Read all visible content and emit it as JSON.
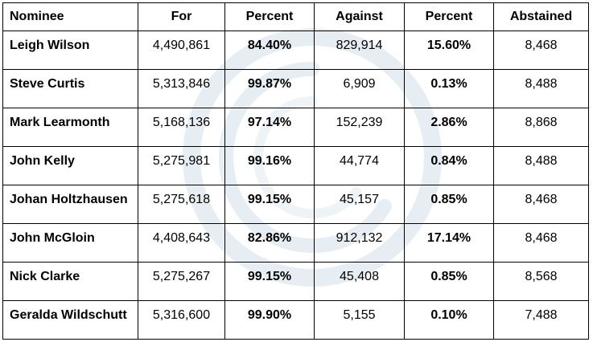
{
  "table": {
    "columns": [
      "Nominee",
      "For",
      "Percent",
      "Against",
      "Percent",
      "Abstained"
    ],
    "rows": [
      {
        "nominee": "Leigh Wilson",
        "for": "4,490,861",
        "for_percent": "84.40%",
        "against": "829,914",
        "against_percent": "15.60%",
        "abstained": "8,468"
      },
      {
        "nominee": "Steve Curtis",
        "for": "5,313,846",
        "for_percent": "99.87%",
        "against": "6,909",
        "against_percent": "0.13%",
        "abstained": "8,488"
      },
      {
        "nominee": "Mark Learmonth",
        "for": "5,168,136",
        "for_percent": "97.14%",
        "against": "152,239",
        "against_percent": "2.86%",
        "abstained": "8,868"
      },
      {
        "nominee": "John Kelly",
        "for": "5,275,981",
        "for_percent": "99.16%",
        "against": "44,774",
        "against_percent": "0.84%",
        "abstained": "8,488"
      },
      {
        "nominee": "Johan Holtzhausen",
        "for": "5,275,618",
        "for_percent": "99.15%",
        "against": "45,157",
        "against_percent": "0.85%",
        "abstained": "8,468"
      },
      {
        "nominee": "John McGloin",
        "for": "4,408,643",
        "for_percent": "82.86%",
        "against": "912,132",
        "against_percent": "17.14%",
        "abstained": "8,468"
      },
      {
        "nominee": "Nick Clarke",
        "for": "5,275,267",
        "for_percent": "99.15%",
        "against": "45,408",
        "against_percent": "0.85%",
        "abstained": "8,568"
      },
      {
        "nominee": "Geralda Wildschutt",
        "for": "5,316,600",
        "for_percent": "99.90%",
        "against": "5,155",
        "against_percent": "0.10%",
        "abstained": "7,488"
      }
    ]
  },
  "colors": {
    "border": "#000000",
    "text": "#000000",
    "background": "#ffffff",
    "watermark": "#e6edf3"
  },
  "icons": {
    "watermark": "watermark-logo"
  }
}
